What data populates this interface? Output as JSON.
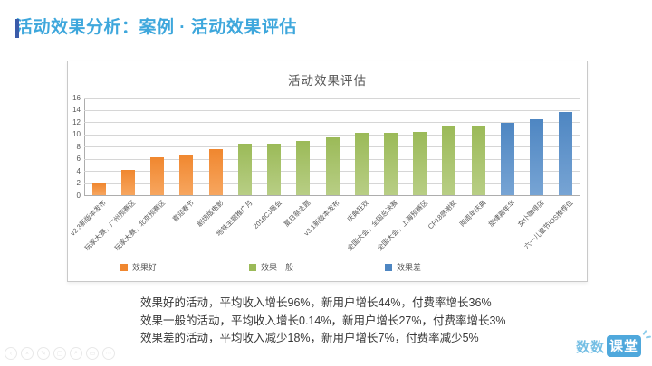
{
  "page": {
    "slide_title": "活动效果分析：案例 · 活动效果评估"
  },
  "chart_data": {
    "type": "bar",
    "title": "活动效果评估",
    "xlabel": "",
    "ylabel": "",
    "ylim": [
      0,
      16
    ],
    "ytick_step": 2,
    "yticks": [
      0,
      2,
      4,
      6,
      8,
      10,
      12,
      14,
      16
    ],
    "grid": true,
    "legend_position": "bottom",
    "categories": [
      "v2.3新版本发布",
      "玩家大赛，广州预赛区",
      "玩家大赛，北京预赛区",
      "喜迎春节",
      "剧场版电影",
      "地铁主题推广月",
      "2016CJ展会",
      "夏日祭主题",
      "v3.1新版本发布",
      "庆典狂欢",
      "全国大会，全国总决赛",
      "全国大会，上海预赛区",
      "CP18感谢祭",
      "两周年庆典",
      "旋律嘉年华",
      "女仆咖啡店",
      "六一儿童节iOS推荐位"
    ],
    "series": [
      {
        "name": "效果好",
        "color": "#f0872f",
        "color_light": "#f7a65f",
        "values": [
          1.9,
          4.2,
          6.2,
          6.6,
          7.6
        ]
      },
      {
        "name": "效果一般",
        "color": "#9bba58",
        "color_light": "#b8ce85",
        "values": [
          8.5,
          8.5,
          8.9,
          9.5,
          10.2,
          10.2,
          10.4,
          11.4,
          11.4
        ]
      },
      {
        "name": "效果差",
        "color": "#4e86c2",
        "color_light": "#77a4d4",
        "values": [
          11.8,
          12.4,
          13.7
        ]
      }
    ]
  },
  "summary": {
    "line1": "效果好的活动，平均收入增长96%，新用户增长44%，付费率增长36%",
    "line2": "效果一般的活动，平均收入增长0.14%，新用户增长27%，付费率增长3%",
    "line3": "效果差的活动，平均收入减少18%，新用户增长7%，付费率减少5%"
  },
  "watermark": {
    "icons": [
      "back",
      "close",
      "pencil",
      "camera",
      "magnifier",
      "frame",
      "more"
    ],
    "glyphs": {
      "back": "‹",
      "close": "×",
      "pencil": "✎",
      "camera": "▢",
      "magnifier": "⌕",
      "frame": "▭",
      "more": "⋯"
    }
  },
  "logo": {
    "part1": "数数",
    "part2": "课堂",
    "accent_color": "#4fa8dc"
  }
}
